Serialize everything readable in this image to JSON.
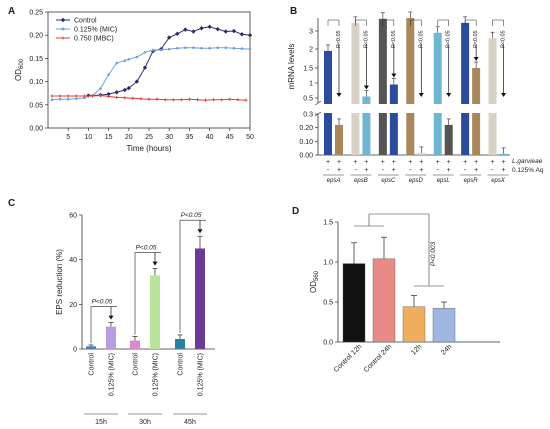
{
  "panels": [
    "A",
    "B",
    "C",
    "D"
  ],
  "chart_data": [
    {
      "panel": "A",
      "type": "line",
      "xlabel": "Time (hours)",
      "ylabel": "OD600",
      "xlim": [
        0,
        50
      ],
      "ylim": [
        0,
        0.25
      ],
      "x_ticks": [
        5,
        10,
        15,
        20,
        25,
        30,
        35,
        40,
        45,
        50
      ],
      "y_ticks": [
        0.0,
        0.05,
        0.1,
        0.15,
        0.2,
        0.25
      ],
      "legend_position": "top-left",
      "series": [
        {
          "name": "Control",
          "color": "#2e2a6e",
          "marker": "diamond",
          "x": [
            10,
            13,
            15,
            17,
            19,
            20,
            22,
            24,
            26,
            28,
            30,
            32,
            34,
            36,
            38,
            40,
            42,
            44,
            46,
            48,
            50
          ],
          "y": [
            0.07,
            0.071,
            0.073,
            0.077,
            0.082,
            0.086,
            0.1,
            0.13,
            0.166,
            0.17,
            0.195,
            0.203,
            0.212,
            0.208,
            0.215,
            0.218,
            0.213,
            0.208,
            0.209,
            0.202,
            0.2
          ]
        },
        {
          "name": "0.125% (MIC)",
          "color": "#6fa3d8",
          "marker": "circle",
          "x": [
            1,
            3,
            5,
            7,
            9,
            11,
            13,
            15,
            17,
            19,
            20,
            22,
            24,
            26,
            28,
            30,
            32,
            34,
            36,
            38,
            40,
            42,
            44,
            46,
            48,
            50
          ],
          "y": [
            0.061,
            0.062,
            0.062,
            0.063,
            0.065,
            0.07,
            0.085,
            0.115,
            0.14,
            0.145,
            0.148,
            0.153,
            0.163,
            0.168,
            0.168,
            0.17,
            0.172,
            0.173,
            0.173,
            0.172,
            0.172,
            0.173,
            0.173,
            0.172,
            0.171,
            0.17
          ]
        },
        {
          "name": "0.750 (MBC)",
          "color": "#e23c3c",
          "marker": "cross",
          "x": [
            1,
            3,
            5,
            7,
            9,
            11,
            13,
            15,
            17,
            19,
            21,
            23,
            25,
            27,
            29,
            31,
            33,
            35,
            37,
            39,
            41,
            43,
            45,
            47,
            49
          ],
          "y": [
            0.069,
            0.069,
            0.069,
            0.069,
            0.069,
            0.069,
            0.07,
            0.068,
            0.066,
            0.065,
            0.064,
            0.063,
            0.062,
            0.062,
            0.061,
            0.061,
            0.061,
            0.062,
            0.061,
            0.06,
            0.061,
            0.061,
            0.062,
            0.061,
            0.06
          ]
        }
      ]
    },
    {
      "panel": "B",
      "type": "bar",
      "ylabel": "mRNA levels",
      "y_ticks_upper": [
        "3",
        "2",
        "1.5",
        "1",
        "0.5"
      ],
      "y_ticks_lower": [
        "0.3",
        "0.20",
        "0.10",
        "0.00"
      ],
      "row_labels": [
        "L.garvieae",
        "0.125% Aq"
      ],
      "row_symbols": [
        "+",
        "-",
        "+",
        "+"
      ],
      "groups": [
        {
          "gene": "epsA",
          "p": "P<0.05",
          "control": 1.95,
          "treated": 0.22,
          "control_color": "#2b4b9b",
          "treated_color": "#a8885a"
        },
        {
          "gene": "epsB",
          "p": "P<0.05",
          "control": 4.0,
          "treated": 0.55,
          "control_color": "#d8d2c6",
          "treated_color": "#6fb7d0"
        },
        {
          "gene": "epsC",
          "p": "P<0.05",
          "control": 4.5,
          "treated": 0.95,
          "control_color": "#555555",
          "treated_color": "#2b4b9b"
        },
        {
          "gene": "epsD",
          "p": "P<0.05",
          "control": 4.6,
          "treated": 0.015,
          "control_color": "#a8885a",
          "treated_color": "#d8d2c6"
        },
        {
          "gene": "epsL",
          "p": "P<0.05",
          "control": 2.9,
          "treated": 0.22,
          "control_color": "#6fb7d0",
          "treated_color": "#555555"
        },
        {
          "gene": "epsR",
          "p": "P<0.05",
          "control": 4.0,
          "treated": 1.5,
          "control_color": "#2b4b9b",
          "treated_color": "#a8885a"
        },
        {
          "gene": "epsX",
          "p": "P<0.05",
          "control": 2.6,
          "treated": 0.008,
          "control_color": "#d8d2c6",
          "treated_color": "#6fb7d0"
        }
      ]
    },
    {
      "panel": "C",
      "type": "bar",
      "ylabel": "EPS reduction (%)",
      "ylim": [
        0,
        60
      ],
      "y_ticks": [
        0,
        20,
        40,
        60
      ],
      "groups": [
        {
          "time": "15h",
          "p": "P<0.05",
          "labels": [
            "Control",
            "0.125% (MIC)"
          ],
          "values": [
            1.2,
            10.0
          ],
          "errors": [
            0.6,
            1.8
          ],
          "colors": [
            "#4a7fb6",
            "#b89ee0"
          ]
        },
        {
          "time": "30h",
          "p": "P<0.05",
          "labels": [
            "Control",
            "0.125% (MIC)"
          ],
          "values": [
            3.8,
            33.0
          ],
          "errors": [
            1.8,
            3.0
          ],
          "colors": [
            "#d98bd2",
            "#b9e39a"
          ]
        },
        {
          "time": "45h",
          "p": "P<0.05",
          "labels": [
            "Control",
            "0.125% (MIC)"
          ],
          "values": [
            4.5,
            45.0
          ],
          "errors": [
            1.8,
            5.5
          ],
          "colors": [
            "#2e7fa6",
            "#6a3b95"
          ]
        }
      ]
    },
    {
      "panel": "D",
      "type": "bar",
      "ylabel": "OD560",
      "ylim": [
        0,
        1.5
      ],
      "y_ticks": [
        "0.0",
        "0.5",
        "1.0",
        "1.5"
      ],
      "p_annotation": "P<0.003",
      "categories": [
        "Control 12h",
        "Control 24h",
        "12h",
        "24h"
      ],
      "values": [
        0.98,
        1.04,
        0.44,
        0.42
      ],
      "errors": [
        0.26,
        0.27,
        0.14,
        0.08
      ],
      "colors": [
        "#111111",
        "#e98a86",
        "#f0ad5e",
        "#9fb6e0"
      ]
    }
  ]
}
